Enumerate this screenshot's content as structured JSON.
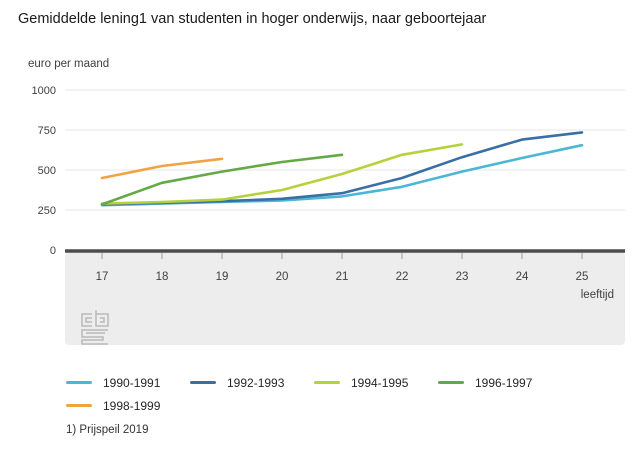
{
  "header": {
    "title": "Gemiddelde lening1 van studenten in hoger onderwijs, naar geboortejaar"
  },
  "footnote": {
    "text": "1) Prijspeil 2019"
  },
  "colors": {
    "gridline": "#e7e7e7",
    "band": "#ededed",
    "axis_line": "#4d4d4d",
    "axis_text": "#404040",
    "tick": "#999999",
    "watermark": "#b9b9b9",
    "series_1990": "#4cb7d5",
    "series_1992": "#3a6fa5",
    "series_1994": "#b4d23d",
    "series_1996": "#64a945",
    "series_1998": "#f0a343"
  },
  "chart_data": {
    "type": "line",
    "title": "Gemiddelde lening1 van studenten in hoger onderwijs, naar geboortejaar",
    "ylabel": "euro per maand",
    "xlabel": "leeftijd",
    "x": [
      17,
      18,
      19,
      20,
      21,
      22,
      23,
      24,
      25
    ],
    "ylim": [
      0,
      1000
    ],
    "yticks": [
      0,
      250,
      500,
      750,
      1000
    ],
    "grid": true,
    "legend_position": "bottom",
    "watermark": "cbs-logo",
    "series": [
      {
        "name": "1990-1991",
        "color": "#4cb7d5",
        "x": [
          17,
          18,
          19,
          20,
          21,
          22,
          23,
          24,
          25
        ],
        "values": [
          280,
          290,
          300,
          310,
          335,
          395,
          490,
          575,
          655
        ]
      },
      {
        "name": "1992-1993",
        "color": "#3a6fa5",
        "x": [
          17,
          18,
          19,
          20,
          21,
          22,
          23,
          24,
          25
        ],
        "values": [
          285,
          295,
          305,
          320,
          355,
          450,
          580,
          690,
          735
        ]
      },
      {
        "name": "1994-1995",
        "color": "#b4d23d",
        "x": [
          17,
          18,
          19,
          20,
          21,
          22,
          23
        ],
        "values": [
          290,
          300,
          315,
          375,
          475,
          595,
          660
        ]
      },
      {
        "name": "1996-1997",
        "color": "#64a945",
        "x": [
          17,
          18,
          19,
          20,
          21
        ],
        "values": [
          285,
          420,
          490,
          550,
          595
        ]
      },
      {
        "name": "1998-1999",
        "color": "#f0a343",
        "x": [
          17,
          18,
          19
        ],
        "values": [
          450,
          525,
          570
        ]
      }
    ]
  }
}
